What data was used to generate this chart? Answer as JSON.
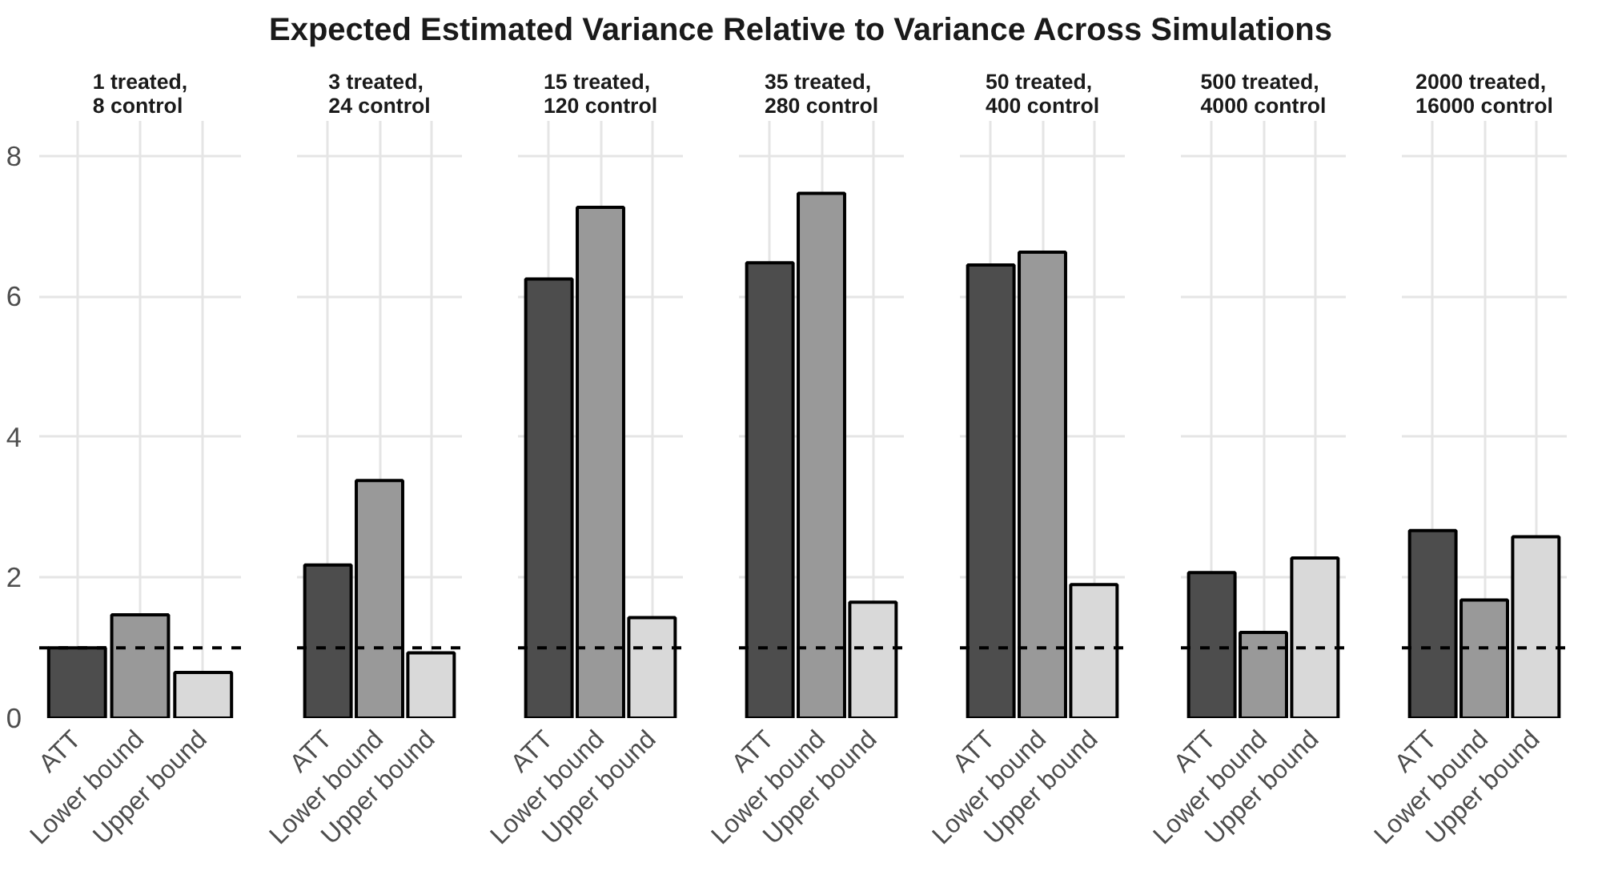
{
  "chart_data": [
    {
      "type": "other",
      "title": "Expected Estimated Variance Relative to Variance Across Simulations"
    },
    {
      "type": "bar",
      "subtitle": "1 treated,\n8 control",
      "categories": [
        "ATT",
        "Lower bound",
        "Upper bound"
      ],
      "values": [
        1.0,
        1.47,
        0.65
      ],
      "colors": [
        "#4d4d4d",
        "#999999",
        "#d9d9d9"
      ],
      "ylim": [
        0,
        8.5
      ],
      "yticks": [
        0,
        2,
        4,
        6,
        8
      ],
      "grid": true,
      "ref_lines": [
        {
          "axis": "y",
          "value": 1,
          "color": "#000000",
          "line_style": "dashed"
        }
      ]
    },
    {
      "type": "bar",
      "subtitle": "3 treated,\n24 control",
      "categories": [
        "ATT",
        "Lower bound",
        "Upper bound"
      ],
      "values": [
        2.18,
        3.38,
        0.93
      ],
      "colors": [
        "#4d4d4d",
        "#999999",
        "#d9d9d9"
      ],
      "ylim": [
        0,
        8.5
      ],
      "yticks": [
        0,
        2,
        4,
        6,
        8
      ],
      "tick_labels": "x",
      "grid": true,
      "ref_lines": [
        {
          "axis": "y",
          "value": 1,
          "color": "#000000",
          "line_style": "dashed"
        }
      ]
    },
    {
      "type": "bar",
      "subtitle": "15 treated,\n120 control",
      "categories": [
        "ATT",
        "Lower bound",
        "Upper bound"
      ],
      "values": [
        6.25,
        7.27,
        1.43
      ],
      "colors": [
        "#4d4d4d",
        "#999999",
        "#d9d9d9"
      ],
      "ylim": [
        0,
        8.5
      ],
      "yticks": [
        0,
        2,
        4,
        6,
        8
      ],
      "tick_labels": "x",
      "grid": true,
      "ref_lines": [
        {
          "axis": "y",
          "value": 1,
          "color": "#000000",
          "line_style": "dashed"
        }
      ]
    },
    {
      "type": "bar",
      "subtitle": "35 treated,\n280 control",
      "categories": [
        "ATT",
        "Lower bound",
        "Upper bound"
      ],
      "values": [
        6.48,
        7.47,
        1.65
      ],
      "colors": [
        "#4d4d4d",
        "#999999",
        "#d9d9d9"
      ],
      "ylim": [
        0,
        8.5
      ],
      "yticks": [
        0,
        2,
        4,
        6,
        8
      ],
      "tick_labels": "x",
      "grid": true,
      "ref_lines": [
        {
          "axis": "y",
          "value": 1,
          "color": "#000000",
          "line_style": "dashed"
        }
      ]
    },
    {
      "type": "bar",
      "subtitle": "50 treated,\n400 control",
      "categories": [
        "ATT",
        "Lower bound",
        "Upper bound"
      ],
      "values": [
        6.45,
        6.63,
        1.9
      ],
      "colors": [
        "#4d4d4d",
        "#999999",
        "#d9d9d9"
      ],
      "ylim": [
        0,
        8.5
      ],
      "yticks": [
        0,
        2,
        4,
        6,
        8
      ],
      "tick_labels": "x",
      "grid": true,
      "ref_lines": [
        {
          "axis": "y",
          "value": 1,
          "color": "#000000",
          "line_style": "dashed"
        }
      ]
    },
    {
      "type": "bar",
      "subtitle": "500 treated,\n4000 control",
      "categories": [
        "ATT",
        "Lower bound",
        "Upper bound"
      ],
      "values": [
        2.07,
        1.22,
        2.28
      ],
      "colors": [
        "#4d4d4d",
        "#999999",
        "#d9d9d9"
      ],
      "ylim": [
        0,
        8.5
      ],
      "yticks": [
        0,
        2,
        4,
        6,
        8
      ],
      "tick_labels": "x",
      "grid": true,
      "ref_lines": [
        {
          "axis": "y",
          "value": 1,
          "color": "#000000",
          "line_style": "dashed"
        }
      ]
    },
    {
      "type": "bar",
      "subtitle": "2000 treated,\n16000 control",
      "categories": [
        "ATT",
        "Lower bound",
        "Upper bound"
      ],
      "values": [
        2.67,
        1.68,
        2.58
      ],
      "colors": [
        "#4d4d4d",
        "#999999",
        "#d9d9d9"
      ],
      "ylim": [
        0,
        8.5
      ],
      "yticks": [
        0,
        2,
        4,
        6,
        8
      ],
      "tick_labels": "x",
      "grid": true,
      "ref_lines": [
        {
          "axis": "y",
          "value": 1,
          "color": "#000000",
          "line_style": "dashed"
        }
      ]
    }
  ]
}
